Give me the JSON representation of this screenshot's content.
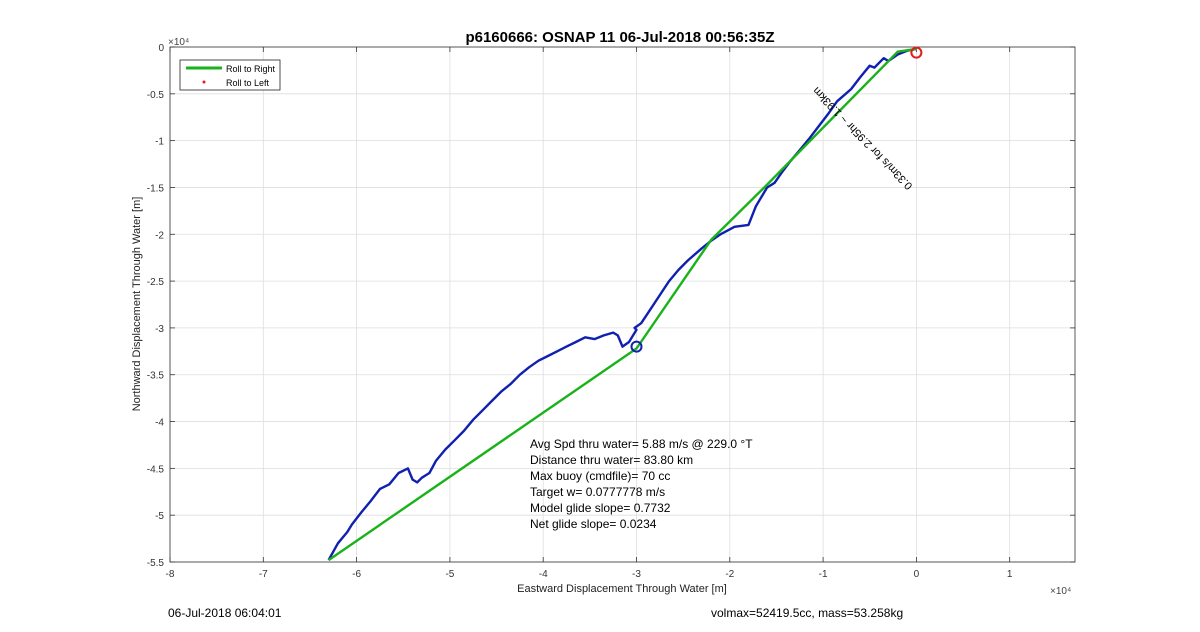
{
  "chart_data": {
    "type": "line",
    "title": "p6160666: OSNAP 11 06-Jul-2018 00:56:35Z",
    "xlabel": "Eastward Displacement Through Water [m]",
    "ylabel": "Northward Displacement Through Water [m]",
    "x_exponent": "×10⁴",
    "y_exponent": "×10⁴",
    "xlim": [
      -8,
      1.7
    ],
    "ylim": [
      -5.5,
      0
    ],
    "x_ticks": [
      -8,
      -7,
      -6,
      -5,
      -4,
      -3,
      -2,
      -1,
      0,
      1
    ],
    "x_tick_labels": [
      "-8",
      "-7",
      "-6",
      "-5",
      "-4",
      "-3",
      "-2",
      "-1",
      "0",
      "1"
    ],
    "y_ticks": [
      0,
      -0.5,
      -1,
      -1.5,
      -2,
      -2.5,
      -3,
      -3.5,
      -4,
      -4.5,
      -5,
      -5.5
    ],
    "y_tick_labels": [
      "0",
      "-0.5",
      "-1",
      "-1.5",
      "-2",
      "-2.5",
      "-3",
      "-3.5",
      "-4",
      "-4.5",
      "-5",
      "-5.5"
    ],
    "grid": true,
    "legend_position": "top-left",
    "legend": [
      {
        "label": "Roll to Right",
        "color": "#19b219",
        "marker": "line"
      },
      {
        "label": "Roll to Left",
        "color": "#e41a1c",
        "marker": "dot"
      }
    ],
    "series": [
      {
        "name": "Roll to Right",
        "color": "#19b219",
        "x": [
          -6.3,
          -3.0,
          -2.2,
          -1.6,
          -0.2,
          0.0
        ],
        "y": [
          -5.48,
          -3.22,
          -2.06,
          -1.47,
          -0.05,
          -0.02
        ]
      },
      {
        "color": "#1020b0",
        "x": [
          -6.3,
          -6.2,
          -6.1,
          -6.05,
          -5.95,
          -5.85,
          -5.75,
          -5.65,
          -5.55,
          -5.45,
          -5.4,
          -5.35,
          -5.3,
          -5.22,
          -5.15,
          -5.05,
          -4.95,
          -4.85,
          -4.75,
          -4.65,
          -4.55,
          -4.45,
          -4.35,
          -4.25,
          -4.15,
          -4.05,
          -3.95,
          -3.85,
          -3.75,
          -3.65,
          -3.55,
          -3.45,
          -3.35,
          -3.25,
          -3.2,
          -3.15,
          -3.08,
          -3.0,
          -3.02,
          -2.95,
          -2.85,
          -2.75,
          -2.65,
          -2.55,
          -2.45,
          -2.3,
          -2.2,
          -2.1,
          -1.95,
          -1.8,
          -1.72,
          -1.6,
          -1.52,
          -1.45,
          -1.35,
          -1.25,
          -1.15,
          -1.05,
          -0.95,
          -0.85,
          -0.7,
          -0.6,
          -0.5,
          -0.45,
          -0.35,
          -0.3,
          -0.2,
          -0.1,
          0.0
        ],
        "y": [
          -5.48,
          -5.3,
          -5.18,
          -5.1,
          -4.97,
          -4.85,
          -4.72,
          -4.67,
          -4.55,
          -4.5,
          -4.62,
          -4.65,
          -4.6,
          -4.55,
          -4.42,
          -4.3,
          -4.2,
          -4.1,
          -3.98,
          -3.88,
          -3.78,
          -3.68,
          -3.6,
          -3.5,
          -3.42,
          -3.35,
          -3.3,
          -3.25,
          -3.2,
          -3.15,
          -3.1,
          -3.12,
          -3.08,
          -3.05,
          -3.08,
          -3.2,
          -3.15,
          -3.02,
          -3.0,
          -2.95,
          -2.8,
          -2.65,
          -2.5,
          -2.38,
          -2.28,
          -2.15,
          -2.07,
          -2.0,
          -1.92,
          -1.9,
          -1.7,
          -1.5,
          -1.45,
          -1.35,
          -1.22,
          -1.1,
          -0.98,
          -0.85,
          -0.72,
          -0.58,
          -0.45,
          -0.32,
          -0.2,
          -0.22,
          -0.12,
          -0.15,
          -0.08,
          -0.04,
          -0.02
        ]
      }
    ],
    "end_marker": {
      "x": 0.0,
      "y": -0.06,
      "color": "#e41a1c"
    },
    "loop_marker": {
      "x": -3.0,
      "y": -3.2,
      "color": "#1020b0"
    },
    "track_label": "0.33m/s for 2.95hr ~ 1.93km",
    "annotations": [
      "Avg Spd thru water=  5.88 m/s @ 229.0 °T",
      "Distance thru water= 83.80 km",
      "Max buoy (cmdfile)= 70 cc",
      "Target w= 0.0777778 m/s",
      "Model glide slope= 0.7732",
      "Net glide slope= 0.0234"
    ]
  },
  "footer": {
    "timestamp": "06-Jul-2018 06:04:01",
    "summary": "volmax=52419.5cc, mass=53.258kg"
  }
}
